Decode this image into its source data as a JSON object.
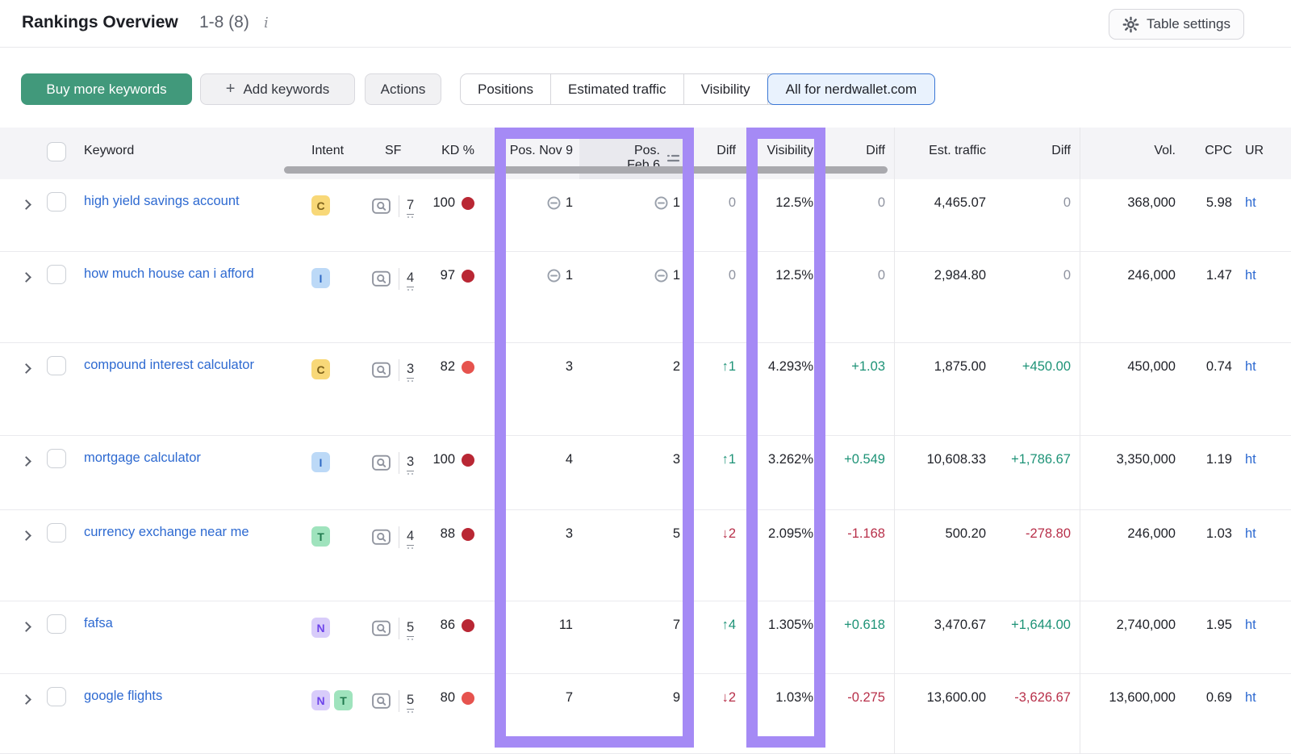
{
  "panel": {
    "title": "Rankings Overview",
    "range_label": "1-8 (8)",
    "table_settings_label": "Table settings"
  },
  "toolbar": {
    "buy_more_keywords": "Buy more keywords",
    "add_keywords_plus": "+",
    "add_keywords": "Add keywords",
    "actions": "Actions",
    "segments": {
      "positions": "Positions",
      "estimated_traffic": "Estimated traffic",
      "visibility": "Visibility",
      "all_for_domain": "All for nerdwallet.com"
    },
    "selected_segment": "All for nerdwallet.com"
  },
  "table": {
    "headers": {
      "keyword": "Keyword",
      "intent": "Intent",
      "sf": "SF",
      "kd": "KD %",
      "pos_nov9": "Pos. Nov 9",
      "pos_feb6": "Pos. Feb 6",
      "diff1": "Diff",
      "visibility": "Visibility",
      "diff2": "Diff",
      "est_traffic": "Est. traffic",
      "diff3": "Diff",
      "vol": "Vol.",
      "cpc": "CPC",
      "url": "UR"
    },
    "sorted_column": "Pos. Feb 6",
    "rows": [
      {
        "keyword": "high yield savings account",
        "intents": [
          "C"
        ],
        "sf": "7",
        "kd": "100",
        "kd_dot": "dark",
        "pos_nov9": "1",
        "pos_nov9_link": true,
        "pos_feb6": "1",
        "pos_feb6_link": true,
        "pos_diff": "0",
        "pos_diff_dir": "none",
        "visibility": "12.5%",
        "vis_diff": "0",
        "est_traffic": "4,465.07",
        "traffic_diff": "0",
        "vol": "368,000",
        "cpc": "5.98",
        "url": "ht"
      },
      {
        "keyword": "how much house can i afford",
        "intents": [
          "I"
        ],
        "sf": "4",
        "kd": "97",
        "kd_dot": "dark",
        "pos_nov9": "1",
        "pos_nov9_link": true,
        "pos_feb6": "1",
        "pos_feb6_link": true,
        "pos_diff": "0",
        "pos_diff_dir": "none",
        "visibility": "12.5%",
        "vis_diff": "0",
        "est_traffic": "2,984.80",
        "traffic_diff": "0",
        "vol": "246,000",
        "cpc": "1.47",
        "url": "ht"
      },
      {
        "keyword": "compound interest calculator",
        "intents": [
          "C"
        ],
        "sf": "3",
        "kd": "82",
        "kd_dot": "light",
        "pos_nov9": "3",
        "pos_nov9_link": false,
        "pos_feb6": "2",
        "pos_feb6_link": false,
        "pos_diff": "1",
        "pos_diff_dir": "up",
        "visibility": "4.293%",
        "vis_diff": "+1.03",
        "est_traffic": "1,875.00",
        "traffic_diff": "+450.00",
        "vol": "450,000",
        "cpc": "0.74",
        "url": "ht"
      },
      {
        "keyword": "mortgage calculator",
        "intents": [
          "I"
        ],
        "sf": "3",
        "kd": "100",
        "kd_dot": "dark",
        "pos_nov9": "4",
        "pos_nov9_link": false,
        "pos_feb6": "3",
        "pos_feb6_link": false,
        "pos_diff": "1",
        "pos_diff_dir": "up",
        "visibility": "3.262%",
        "vis_diff": "+0.549",
        "est_traffic": "10,608.33",
        "traffic_diff": "+1,786.67",
        "vol": "3,350,000",
        "cpc": "1.19",
        "url": "ht"
      },
      {
        "keyword": "currency exchange near me",
        "intents": [
          "T"
        ],
        "sf": "4",
        "kd": "88",
        "kd_dot": "dark",
        "pos_nov9": "3",
        "pos_nov9_link": false,
        "pos_feb6": "5",
        "pos_feb6_link": false,
        "pos_diff": "2",
        "pos_diff_dir": "down",
        "visibility": "2.095%",
        "vis_diff": "-1.168",
        "est_traffic": "500.20",
        "traffic_diff": "-278.80",
        "vol": "246,000",
        "cpc": "1.03",
        "url": "ht"
      },
      {
        "keyword": "fafsa",
        "intents": [
          "N"
        ],
        "sf": "5",
        "kd": "86",
        "kd_dot": "dark",
        "pos_nov9": "11",
        "pos_nov9_link": false,
        "pos_feb6": "7",
        "pos_feb6_link": false,
        "pos_diff": "4",
        "pos_diff_dir": "up",
        "visibility": "1.305%",
        "vis_diff": "+0.618",
        "est_traffic": "3,470.67",
        "traffic_diff": "+1,644.00",
        "vol": "2,740,000",
        "cpc": "1.95",
        "url": "ht"
      },
      {
        "keyword": "google flights",
        "intents": [
          "N",
          "T"
        ],
        "sf": "5",
        "kd": "80",
        "kd_dot": "light",
        "pos_nov9": "7",
        "pos_nov9_link": false,
        "pos_feb6": "9",
        "pos_feb6_link": false,
        "pos_diff": "2",
        "pos_diff_dir": "down",
        "visibility": "1.03%",
        "vis_diff": "-0.275",
        "est_traffic": "13,600.00",
        "traffic_diff": "-3,626.67",
        "vol": "13,600,000",
        "cpc": "0.69",
        "url": "ht"
      }
    ]
  },
  "colors": {
    "highlight_purple": "#a58af5",
    "buy_button_green": "#41997b",
    "positive_green": "#1e9377",
    "negative_red": "#b8304a",
    "link_blue": "#2e6ad1",
    "selected_segment_border": "#3a77d5",
    "kd_dot_dark": "#b92734",
    "kd_dot_light": "#e6534e"
  }
}
